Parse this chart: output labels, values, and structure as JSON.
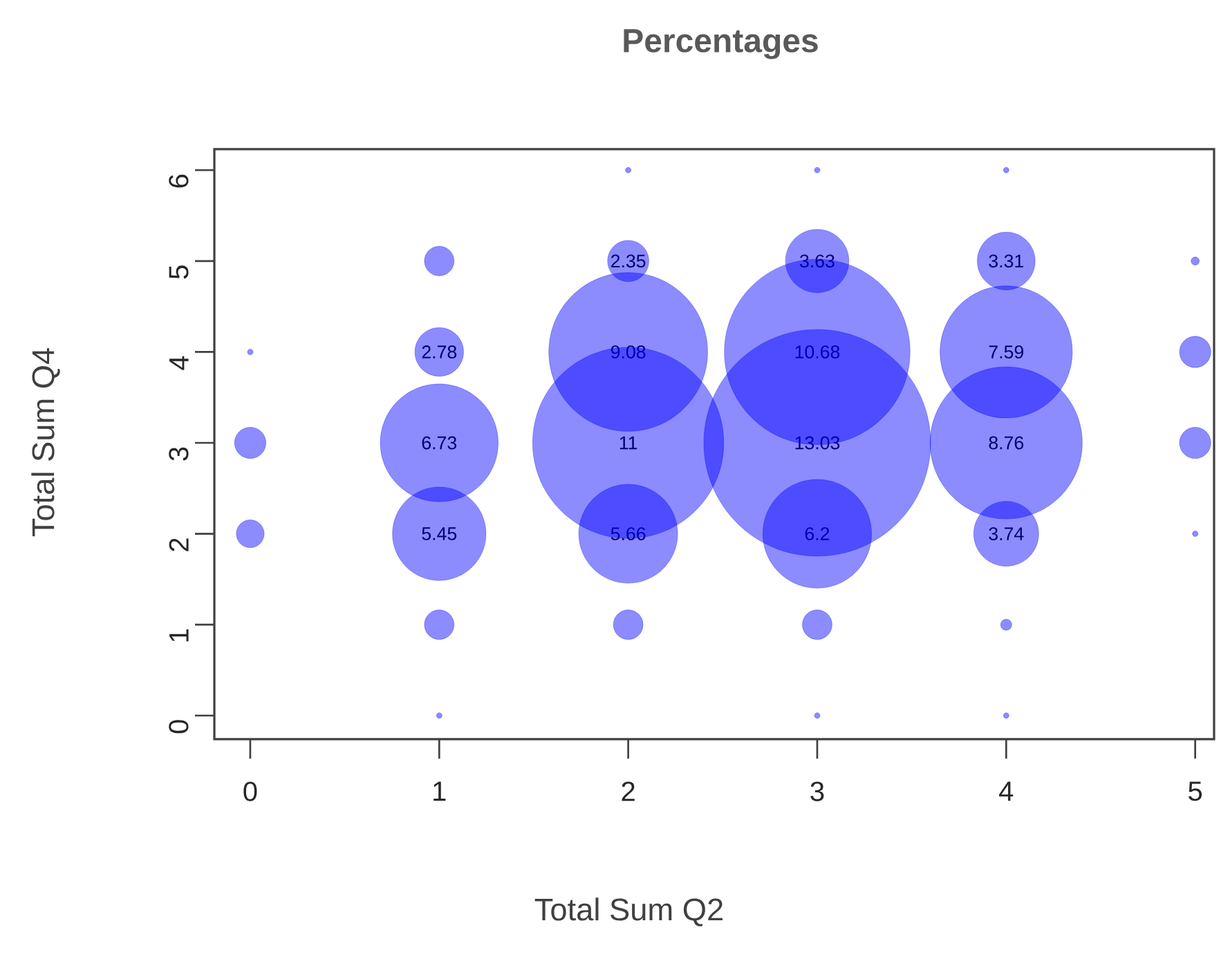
{
  "chart_data": {
    "type": "bubble",
    "title": "Percentages",
    "xlabel": "Total Sum Q2",
    "ylabel": "Total Sum Q4",
    "x": [
      0,
      0,
      0,
      1,
      1,
      1,
      1,
      1,
      1,
      2,
      2,
      2,
      2,
      2,
      2,
      3,
      3,
      3,
      3,
      3,
      3,
      3,
      4,
      4,
      4,
      4,
      4,
      4,
      4,
      5,
      5,
      5,
      5
    ],
    "values": [
      2,
      3,
      4,
      0,
      1,
      2,
      3,
      4,
      5,
      1,
      2,
      3,
      4,
      5,
      6,
      0,
      1,
      2,
      3,
      4,
      5,
      6,
      0,
      1,
      2,
      3,
      4,
      5,
      6,
      2,
      3,
      4,
      5
    ],
    "sizes": [
      0.015,
      0.019,
      0.0006,
      0.0006,
      0.017,
      0.17,
      0.27,
      0.046,
      0.017,
      0.017,
      0.19,
      0.71,
      0.49,
      0.033,
      0.0006,
      0.0006,
      0.017,
      0.23,
      1,
      0.67,
      0.078,
      0.0006,
      0.0006,
      0.0024,
      0.082,
      0.45,
      0.34,
      0.065,
      0.0006,
      0.0006,
      0.019,
      0.019,
      0.0013
    ],
    "annotations": [
      {
        "text": "5.45",
        "x": 1,
        "y": 2
      },
      {
        "text": "6.73",
        "x": 1,
        "y": 3
      },
      {
        "text": "2.78",
        "x": 1,
        "y": 4
      },
      {
        "text": "5.66",
        "x": 2,
        "y": 2
      },
      {
        "text": "11",
        "x": 2,
        "y": 3
      },
      {
        "text": "9.08",
        "x": 2,
        "y": 4
      },
      {
        "text": "2.35",
        "x": 2,
        "y": 5
      },
      {
        "text": "6.2",
        "x": 3,
        "y": 2
      },
      {
        "text": "13.03",
        "x": 3,
        "y": 3
      },
      {
        "text": "10.68",
        "x": 3,
        "y": 4
      },
      {
        "text": "3.63",
        "x": 3,
        "y": 5
      },
      {
        "text": "3.74",
        "x": 4,
        "y": 2
      },
      {
        "text": "8.76",
        "x": 4,
        "y": 3
      },
      {
        "text": "7.59",
        "x": 4,
        "y": 4
      },
      {
        "text": "3.31",
        "x": 4,
        "y": 5
      }
    ],
    "color": "#0000ff",
    "xlim": [
      -0.19,
      5.1
    ],
    "ylim": [
      -0.26,
      6.23
    ],
    "xticks": [
      0,
      1,
      2,
      3,
      4,
      5
    ],
    "yticks": [
      0,
      1,
      2,
      3,
      4,
      5,
      6
    ]
  }
}
